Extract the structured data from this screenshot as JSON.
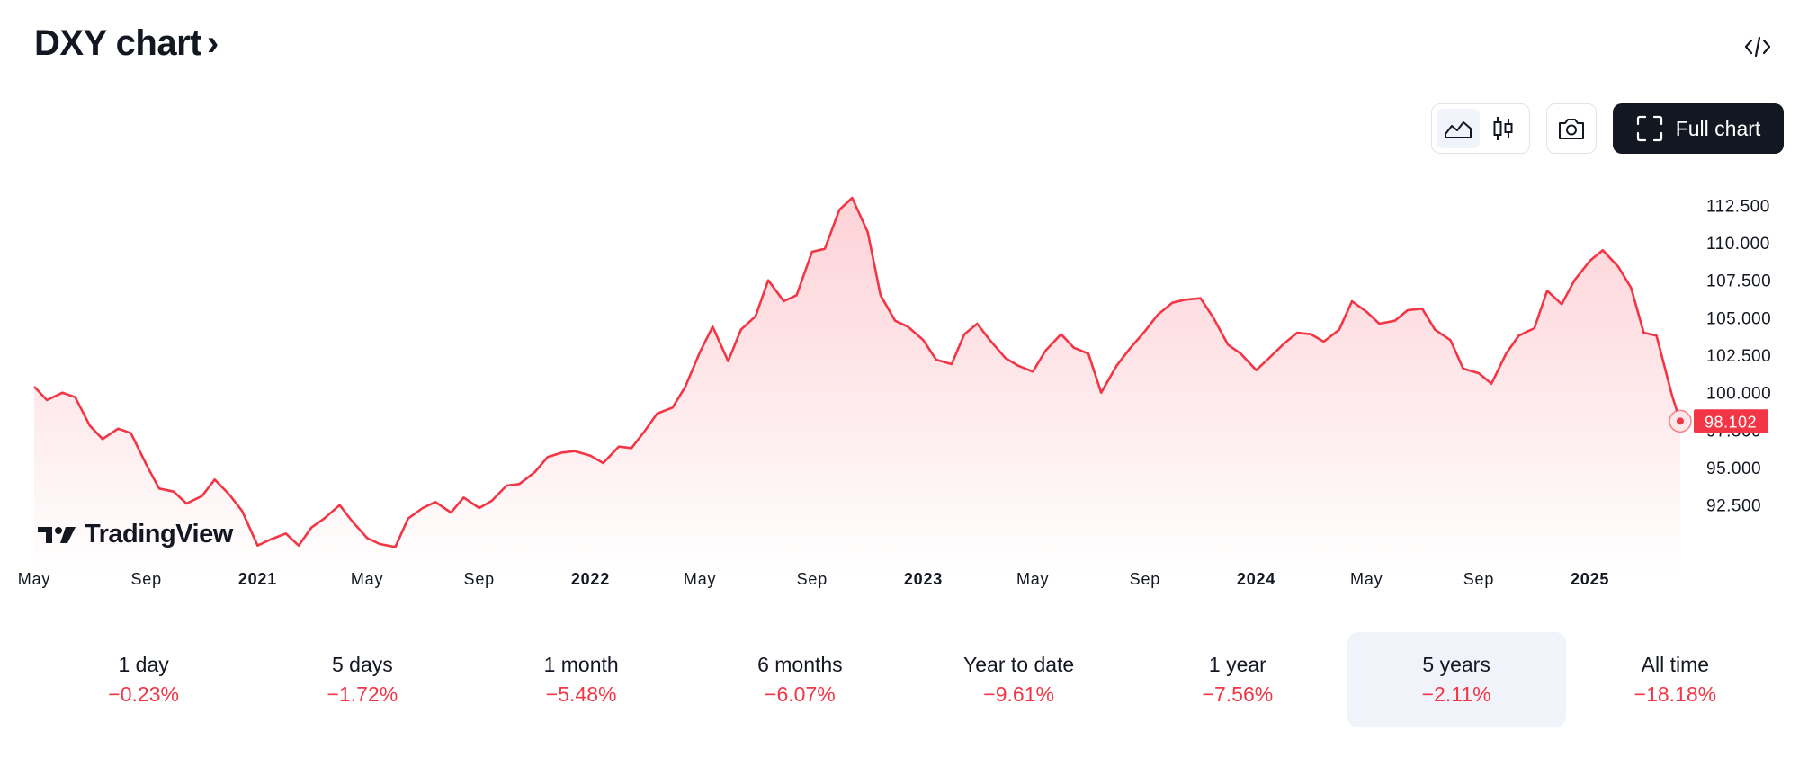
{
  "header": {
    "title": "DXY chart",
    "title_chevron": "›",
    "embed_icon": "code-embed-icon"
  },
  "toolbar": {
    "area_icon": "area-chart-icon",
    "candles_icon": "candlestick-icon",
    "snapshot_icon": "camera-icon",
    "full_chart_icon": "fullscreen-icon",
    "full_chart_label": "Full chart"
  },
  "logo": {
    "text": "TradingView",
    "icon": "tradingview-logo-icon"
  },
  "colors": {
    "line": "#f23645",
    "fill_top": "#fdd6da",
    "fill_bottom": "#ffffff",
    "text": "#131722"
  },
  "chart_data": {
    "type": "area",
    "title": "",
    "x_start": "2020-05",
    "x_end": "2025-04",
    "x_tick_labels": [
      "May",
      "Sep",
      "2021",
      "May",
      "Sep",
      "2022",
      "May",
      "Sep",
      "2023",
      "May",
      "Sep",
      "2024",
      "May",
      "Sep",
      "2025"
    ],
    "x_tick_dates": [
      "2020-05-01",
      "2020-09-01",
      "2021-01-01",
      "2021-05-01",
      "2021-09-01",
      "2022-01-01",
      "2022-05-01",
      "2022-09-01",
      "2023-01-01",
      "2023-05-01",
      "2023-09-01",
      "2024-01-01",
      "2024-05-01",
      "2024-09-01",
      "2025-01-01"
    ],
    "bold_ticks": [
      "2021",
      "2022",
      "2023",
      "2024",
      "2025"
    ],
    "y_ticks": [
      92.5,
      95.0,
      97.5,
      100.0,
      102.5,
      105.0,
      107.5,
      110.0,
      112.5
    ],
    "y_tick_labels": [
      "92.500",
      "95.000",
      "97.500",
      "100.000",
      "102.500",
      "105.000",
      "107.500",
      "110.000",
      "112.500"
    ],
    "ylim": [
      89.0,
      114.2
    ],
    "grid": false,
    "last_value": 98.102,
    "last_value_label": "98.102",
    "series": [
      {
        "values": [
          [
            "2020-05-01",
            100.4
          ],
          [
            "2020-05-15",
            99.5
          ],
          [
            "2020-06-01",
            100.0
          ],
          [
            "2020-06-15",
            99.7
          ],
          [
            "2020-07-01",
            97.8
          ],
          [
            "2020-07-15",
            96.9
          ],
          [
            "2020-08-01",
            97.6
          ],
          [
            "2020-08-15",
            97.3
          ],
          [
            "2020-09-01",
            95.2
          ],
          [
            "2020-09-15",
            93.6
          ],
          [
            "2020-10-01",
            93.4
          ],
          [
            "2020-10-15",
            92.6
          ],
          [
            "2020-11-01",
            93.1
          ],
          [
            "2020-11-15",
            94.2
          ],
          [
            "2020-12-01",
            93.2
          ],
          [
            "2020-12-15",
            92.1
          ],
          [
            "2021-01-01",
            89.8
          ],
          [
            "2021-01-15",
            90.2
          ],
          [
            "2021-02-01",
            90.6
          ],
          [
            "2021-02-15",
            89.8
          ],
          [
            "2021-03-01",
            91.0
          ],
          [
            "2021-03-15",
            91.6
          ],
          [
            "2021-04-01",
            92.5
          ],
          [
            "2021-04-15",
            91.4
          ],
          [
            "2021-05-01",
            90.3
          ],
          [
            "2021-05-15",
            89.9
          ],
          [
            "2021-06-01",
            89.7
          ],
          [
            "2021-06-15",
            91.6
          ],
          [
            "2021-07-01",
            92.3
          ],
          [
            "2021-07-15",
            92.7
          ],
          [
            "2021-08-01",
            92.0
          ],
          [
            "2021-08-15",
            93.0
          ],
          [
            "2021-09-01",
            92.3
          ],
          [
            "2021-09-15",
            92.8
          ],
          [
            "2021-10-01",
            93.8
          ],
          [
            "2021-10-15",
            93.9
          ],
          [
            "2021-11-01",
            94.7
          ],
          [
            "2021-11-15",
            95.7
          ],
          [
            "2021-12-01",
            96.0
          ],
          [
            "2021-12-15",
            96.1
          ],
          [
            "2022-01-01",
            95.8
          ],
          [
            "2022-01-15",
            95.3
          ],
          [
            "2022-02-01",
            96.4
          ],
          [
            "2022-02-15",
            96.3
          ],
          [
            "2022-03-01",
            97.4
          ],
          [
            "2022-03-15",
            98.6
          ],
          [
            "2022-04-01",
            99.0
          ],
          [
            "2022-04-15",
            100.4
          ],
          [
            "2022-05-01",
            102.7
          ],
          [
            "2022-05-15",
            104.4
          ],
          [
            "2022-06-01",
            102.1
          ],
          [
            "2022-06-15",
            104.2
          ],
          [
            "2022-07-01",
            105.1
          ],
          [
            "2022-07-15",
            107.5
          ],
          [
            "2022-08-01",
            106.1
          ],
          [
            "2022-08-15",
            106.5
          ],
          [
            "2022-09-01",
            109.4
          ],
          [
            "2022-09-15",
            109.6
          ],
          [
            "2022-10-01",
            112.2
          ],
          [
            "2022-10-15",
            113.0
          ],
          [
            "2022-11-01",
            110.7
          ],
          [
            "2022-11-15",
            106.5
          ],
          [
            "2022-12-01",
            104.8
          ],
          [
            "2022-12-15",
            104.4
          ],
          [
            "2023-01-01",
            103.5
          ],
          [
            "2023-01-15",
            102.2
          ],
          [
            "2023-02-01",
            101.9
          ],
          [
            "2023-02-15",
            103.9
          ],
          [
            "2023-03-01",
            104.6
          ],
          [
            "2023-03-15",
            103.5
          ],
          [
            "2023-04-01",
            102.3
          ],
          [
            "2023-04-15",
            101.8
          ],
          [
            "2023-05-01",
            101.4
          ],
          [
            "2023-05-15",
            102.8
          ],
          [
            "2023-06-01",
            103.9
          ],
          [
            "2023-06-15",
            103.0
          ],
          [
            "2023-07-01",
            102.6
          ],
          [
            "2023-07-15",
            100.0
          ],
          [
            "2023-08-01",
            101.8
          ],
          [
            "2023-08-15",
            102.9
          ],
          [
            "2023-09-01",
            104.1
          ],
          [
            "2023-09-15",
            105.2
          ],
          [
            "2023-10-01",
            106.0
          ],
          [
            "2023-10-15",
            106.2
          ],
          [
            "2023-11-01",
            106.3
          ],
          [
            "2023-11-15",
            105.0
          ],
          [
            "2023-12-01",
            103.2
          ],
          [
            "2023-12-15",
            102.6
          ],
          [
            "2024-01-01",
            101.5
          ],
          [
            "2024-01-15",
            102.3
          ],
          [
            "2024-02-01",
            103.3
          ],
          [
            "2024-02-15",
            104.0
          ],
          [
            "2024-03-01",
            103.9
          ],
          [
            "2024-03-15",
            103.4
          ],
          [
            "2024-04-01",
            104.2
          ],
          [
            "2024-04-15",
            106.1
          ],
          [
            "2024-05-01",
            105.4
          ],
          [
            "2024-05-15",
            104.6
          ],
          [
            "2024-06-01",
            104.8
          ],
          [
            "2024-06-15",
            105.5
          ],
          [
            "2024-07-01",
            105.6
          ],
          [
            "2024-07-15",
            104.2
          ],
          [
            "2024-08-01",
            103.5
          ],
          [
            "2024-08-15",
            101.6
          ],
          [
            "2024-09-01",
            101.3
          ],
          [
            "2024-09-15",
            100.6
          ],
          [
            "2024-10-01",
            102.6
          ],
          [
            "2024-10-15",
            103.8
          ],
          [
            "2024-11-01",
            104.3
          ],
          [
            "2024-11-15",
            106.8
          ],
          [
            "2024-12-01",
            105.9
          ],
          [
            "2024-12-15",
            107.5
          ],
          [
            "2025-01-01",
            108.8
          ],
          [
            "2025-01-15",
            109.5
          ],
          [
            "2025-02-01",
            108.4
          ],
          [
            "2025-02-15",
            107.0
          ],
          [
            "2025-03-01",
            104.0
          ],
          [
            "2025-03-15",
            103.8
          ],
          [
            "2025-04-01",
            99.8
          ],
          [
            "2025-04-10",
            98.1
          ]
        ]
      }
    ]
  },
  "periods": [
    {
      "label": "1 day",
      "change": "−0.23%"
    },
    {
      "label": "5 days",
      "change": "−1.72%"
    },
    {
      "label": "1 month",
      "change": "−5.48%"
    },
    {
      "label": "6 months",
      "change": "−6.07%"
    },
    {
      "label": "Year to date",
      "change": "−9.61%"
    },
    {
      "label": "1 year",
      "change": "−7.56%"
    },
    {
      "label": "5 years",
      "change": "−2.11%",
      "active": true
    },
    {
      "label": "All time",
      "change": "−18.18%"
    }
  ]
}
